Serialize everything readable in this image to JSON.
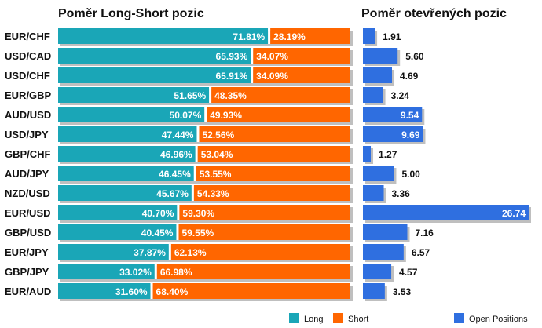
{
  "chart_data": [
    {
      "type": "bar",
      "title": "Poměr Long-Short pozic",
      "categories": [
        "EUR/CHF",
        "USD/CAD",
        "USD/CHF",
        "EUR/GBP",
        "AUD/USD",
        "USD/JPY",
        "GBP/CHF",
        "AUD/JPY",
        "NZD/USD",
        "EUR/USD",
        "GBP/USD",
        "EUR/JPY",
        "GBP/JPY",
        "EUR/AUD"
      ],
      "series": [
        {
          "name": "Long",
          "color": "#1aa6b7",
          "values": [
            71.81,
            65.93,
            65.91,
            51.65,
            50.07,
            47.44,
            46.96,
            46.45,
            45.67,
            40.7,
            40.45,
            37.87,
            33.02,
            31.6
          ]
        },
        {
          "name": "Short",
          "color": "#ff6600",
          "values": [
            28.19,
            34.07,
            34.09,
            48.35,
            49.93,
            52.56,
            53.04,
            53.55,
            54.33,
            59.3,
            59.55,
            62.13,
            66.98,
            68.4
          ]
        }
      ],
      "stacked": true,
      "value_suffix": "%",
      "legend_position": "bottom"
    },
    {
      "type": "bar",
      "title": "Poměr otevřených pozic",
      "categories": [
        "EUR/CHF",
        "USD/CAD",
        "USD/CHF",
        "EUR/GBP",
        "AUD/USD",
        "USD/JPY",
        "GBP/CHF",
        "AUD/JPY",
        "NZD/USD",
        "EUR/USD",
        "GBP/USD",
        "EUR/JPY",
        "GBP/JPY",
        "EUR/AUD"
      ],
      "series": [
        {
          "name": "Open Positions",
          "color": "#2f6fe0",
          "values": [
            1.91,
            5.6,
            4.69,
            3.24,
            9.54,
            9.69,
            1.27,
            5.0,
            3.36,
            26.74,
            7.16,
            6.57,
            4.57,
            3.53
          ]
        }
      ],
      "legend_position": "bottom-right"
    }
  ]
}
